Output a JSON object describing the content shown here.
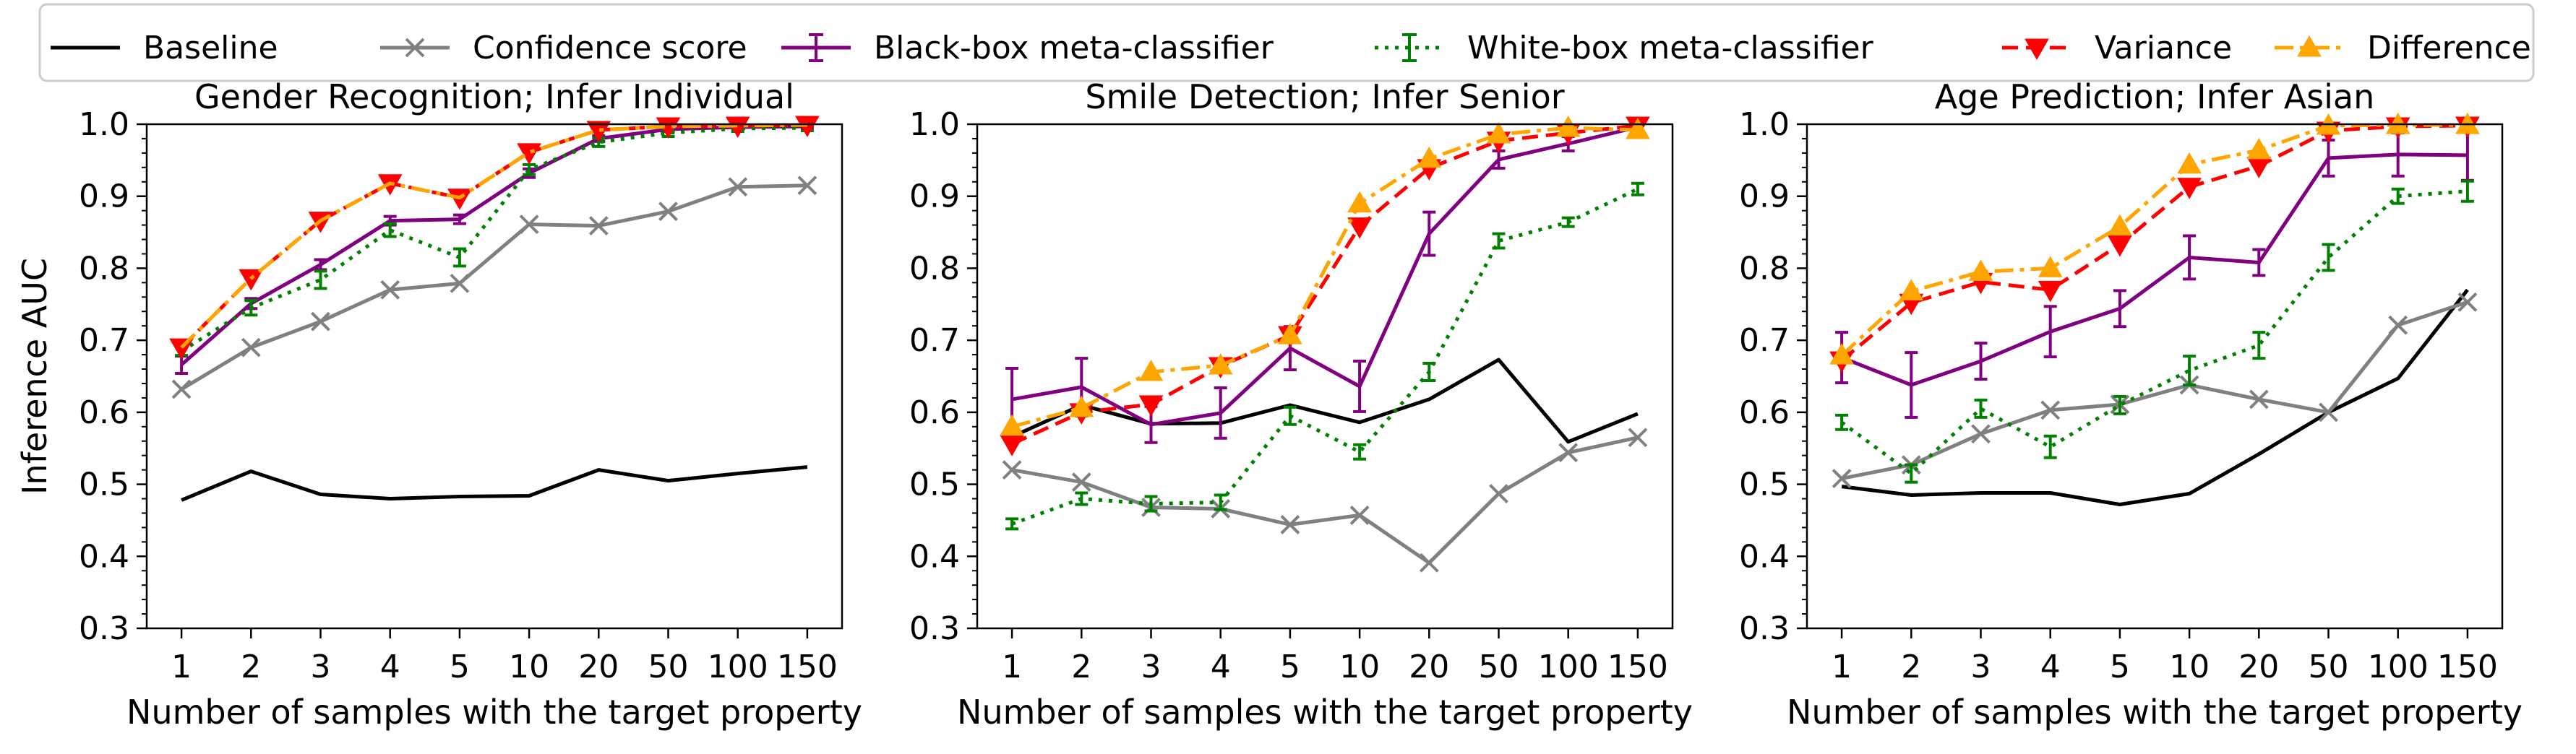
{
  "chart_data": [
    {
      "type": "line",
      "title": "Gender Recognition; Infer Individual",
      "xlabel": "Number of samples with the target property",
      "ylabel": "Inference AUC",
      "categories": [
        "1",
        "2",
        "3",
        "4",
        "5",
        "10",
        "20",
        "50",
        "100",
        "150"
      ],
      "ylim": [
        0.3,
        1.0
      ],
      "yticks": [
        "0.3",
        "0.4",
        "0.5",
        "0.6",
        "0.7",
        "0.8",
        "0.9",
        "1.0"
      ],
      "grid": false,
      "series": [
        {
          "name": "Baseline",
          "values": [
            0.478,
            0.518,
            0.486,
            0.48,
            0.483,
            0.484,
            0.52,
            0.505,
            0.515,
            0.524
          ]
        },
        {
          "name": "Confidence score",
          "values": [
            0.632,
            0.69,
            0.726,
            0.77,
            0.779,
            0.861,
            0.859,
            0.879,
            0.913,
            0.915
          ]
        },
        {
          "name": "Black-box meta-classifier",
          "values": [
            0.666,
            0.751,
            0.805,
            0.866,
            0.868,
            0.932,
            0.98,
            0.993,
            0.996,
            0.997
          ],
          "errors": [
            0.012,
            0.007,
            0.007,
            0.006,
            0.006,
            0.006,
            0.004,
            0.003,
            0.002,
            0.002
          ]
        },
        {
          "name": "White-box meta-classifier",
          "values": [
            0.685,
            0.745,
            0.784,
            0.853,
            0.815,
            0.937,
            0.975,
            0.988,
            0.994,
            0.995
          ],
          "errors": [
            0.006,
            0.01,
            0.012,
            0.009,
            0.012,
            0.007,
            0.006,
            0.005,
            0.004,
            0.004
          ]
        },
        {
          "name": "Variance",
          "values": [
            0.69,
            0.786,
            0.866,
            0.918,
            0.898,
            0.961,
            0.992,
            0.997,
            0.998,
            0.999
          ]
        },
        {
          "name": "Difference",
          "values": [
            0.69,
            0.786,
            0.866,
            0.918,
            0.898,
            0.961,
            0.992,
            0.997,
            0.998,
            0.999
          ],
          "hidden_markers": true
        }
      ]
    },
    {
      "type": "line",
      "title": "Smile Detection; Infer Senior",
      "xlabel": "Number of samples with the target property",
      "ylabel": "",
      "categories": [
        "1",
        "2",
        "3",
        "4",
        "5",
        "10",
        "20",
        "50",
        "100",
        "150"
      ],
      "ylim": [
        0.3,
        1.0
      ],
      "yticks": [
        "0.3",
        "0.4",
        "0.5",
        "0.6",
        "0.7",
        "0.8",
        "0.9",
        "1.0"
      ],
      "grid": false,
      "series": [
        {
          "name": "Baseline",
          "values": [
            0.566,
            0.61,
            0.584,
            0.585,
            0.61,
            0.586,
            0.618,
            0.673,
            0.559,
            0.598
          ]
        },
        {
          "name": "Confidence score",
          "values": [
            0.52,
            0.503,
            0.468,
            0.466,
            0.444,
            0.457,
            0.391,
            0.487,
            0.544,
            0.565
          ]
        },
        {
          "name": "Black-box meta-classifier",
          "values": [
            0.618,
            0.635,
            0.583,
            0.599,
            0.689,
            0.636,
            0.848,
            0.951,
            0.973,
            0.996
          ],
          "errors": [
            0.043,
            0.04,
            0.025,
            0.035,
            0.03,
            0.035,
            0.03,
            0.012,
            0.01,
            0.006
          ]
        },
        {
          "name": "White-box meta-classifier",
          "values": [
            0.445,
            0.48,
            0.473,
            0.475,
            0.595,
            0.545,
            0.656,
            0.838,
            0.864,
            0.91
          ],
          "errors": [
            0.007,
            0.008,
            0.01,
            0.01,
            0.012,
            0.01,
            0.012,
            0.01,
            0.006,
            0.008
          ]
        },
        {
          "name": "Variance",
          "values": [
            0.556,
            0.6,
            0.611,
            0.664,
            0.707,
            0.858,
            0.939,
            0.977,
            0.988,
            0.998
          ]
        },
        {
          "name": "Difference",
          "values": [
            0.58,
            0.606,
            0.656,
            0.665,
            0.707,
            0.89,
            0.952,
            0.986,
            0.995,
            0.992
          ]
        }
      ]
    },
    {
      "type": "line",
      "title": "Age Prediction; Infer Asian",
      "xlabel": "Number of samples with the target property",
      "ylabel": "",
      "categories": [
        "1",
        "2",
        "3",
        "4",
        "5",
        "10",
        "20",
        "50",
        "100",
        "150"
      ],
      "ylim": [
        0.3,
        1.0
      ],
      "yticks": [
        "0.3",
        "0.4",
        "0.5",
        "0.6",
        "0.7",
        "0.8",
        "0.9",
        "1.0"
      ],
      "grid": false,
      "series": [
        {
          "name": "Baseline",
          "values": [
            0.497,
            0.485,
            0.488,
            0.488,
            0.472,
            0.487,
            0.542,
            0.6,
            0.647,
            0.77
          ]
        },
        {
          "name": "Confidence score",
          "values": [
            0.508,
            0.527,
            0.57,
            0.603,
            0.611,
            0.638,
            0.618,
            0.6,
            0.721,
            0.753
          ]
        },
        {
          "name": "Black-box meta-classifier",
          "values": [
            0.676,
            0.638,
            0.671,
            0.712,
            0.744,
            0.815,
            0.808,
            0.953,
            0.958,
            0.957
          ],
          "errors": [
            0.035,
            0.045,
            0.025,
            0.035,
            0.025,
            0.03,
            0.018,
            0.025,
            0.03,
            0.035
          ]
        },
        {
          "name": "White-box meta-classifier",
          "values": [
            0.586,
            0.515,
            0.605,
            0.552,
            0.61,
            0.658,
            0.693,
            0.815,
            0.9,
            0.907
          ],
          "errors": [
            0.01,
            0.012,
            0.012,
            0.015,
            0.012,
            0.02,
            0.018,
            0.018,
            0.01,
            0.014
          ]
        },
        {
          "name": "Variance",
          "values": [
            0.672,
            0.752,
            0.781,
            0.77,
            0.833,
            0.913,
            0.942,
            0.991,
            0.997,
            0.998
          ]
        },
        {
          "name": "Difference",
          "values": [
            0.679,
            0.768,
            0.795,
            0.8,
            0.858,
            0.944,
            0.964,
            0.998,
            0.999,
            0.999
          ]
        }
      ]
    }
  ],
  "legend": {
    "placement": "top",
    "entries": [
      {
        "label": "Baseline",
        "color": "#000000",
        "style": "solid",
        "marker": "none"
      },
      {
        "label": "Confidence score",
        "color": "#808080",
        "style": "solid",
        "marker": "x"
      },
      {
        "label": "Black-box meta-classifier",
        "color": "#800080",
        "style": "solid",
        "marker": "errorbar"
      },
      {
        "label": "White-box meta-classifier",
        "color": "#008000",
        "style": "dotted",
        "marker": "errorbar"
      },
      {
        "label": "Variance",
        "color": "#ff0000",
        "style": "dashed",
        "marker": "triangle-down"
      },
      {
        "label": "Difference",
        "color": "#ffa500",
        "style": "dashdot",
        "marker": "triangle-up"
      }
    ]
  }
}
